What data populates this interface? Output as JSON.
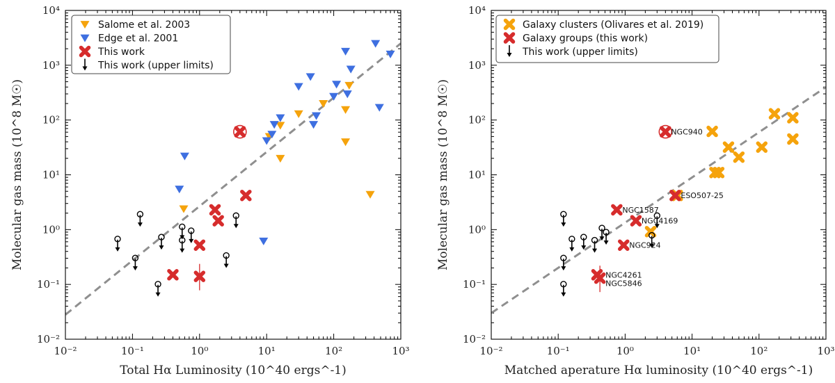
{
  "chart_data": [
    {
      "type": "scatter",
      "xscale": "log",
      "yscale": "log",
      "xlim": [
        0.01,
        1000
      ],
      "ylim": [
        0.01,
        10000
      ],
      "xlabel": "Total Hα Luminosity (10^40 ergs^-1)",
      "ylabel": "Molecular gas mass (10^8 M☉)",
      "legend_position": "top-left",
      "fit_line": {
        "x": [
          0.01,
          1000
        ],
        "y": [
          0.028,
          2500
        ],
        "style": "dashed",
        "color": "#8f8f8f"
      },
      "series": [
        {
          "name": "Salome et al. 2003",
          "marker": "triangle-down",
          "color": "#f5a30c",
          "points": [
            [
              0.58,
              2.4
            ],
            [
              11,
              50
            ],
            [
              16,
              80
            ],
            [
              16,
              20
            ],
            [
              30,
              130
            ],
            [
              70,
              200
            ],
            [
              150,
              155
            ],
            [
              170,
              430
            ],
            [
              150,
              40
            ],
            [
              350,
              4.4
            ]
          ]
        },
        {
          "name": "Edge et al. 2001",
          "marker": "triangle-down",
          "color": "#3e6fe0",
          "points": [
            [
              0.5,
              5.5
            ],
            [
              0.6,
              22
            ],
            [
              9,
              0.62
            ],
            [
              10,
              42
            ],
            [
              12,
              55
            ],
            [
              13,
              83
            ],
            [
              16,
              110
            ],
            [
              30,
              410
            ],
            [
              45,
              620
            ],
            [
              50,
              83
            ],
            [
              55,
              120
            ],
            [
              100,
              270
            ],
            [
              110,
              450
            ],
            [
              150,
              1800
            ],
            [
              180,
              850
            ],
            [
              160,
              300
            ],
            [
              420,
              2500
            ],
            [
              480,
              170
            ],
            [
              700,
              1600
            ]
          ]
        },
        {
          "name": "This work",
          "marker": "x-cross",
          "color": "#d62c2c",
          "points": [
            [
              0.4,
              0.15
            ],
            [
              1.0,
              0.52
            ],
            [
              1.0,
              0.14
            ],
            [
              1.7,
              2.3
            ],
            [
              1.9,
              1.45
            ],
            [
              4.0,
              61
            ],
            [
              4.9,
              4.2
            ]
          ]
        },
        {
          "name": "This work (upper limits)",
          "marker": "down-arrow",
          "color": "#000000",
          "points": [
            [
              0.06,
              0.6
            ],
            [
              0.11,
              0.27
            ],
            [
              0.13,
              1.7
            ],
            [
              0.24,
              0.09
            ],
            [
              0.27,
              0.65
            ],
            [
              0.55,
              0.57
            ],
            [
              0.55,
              1.0
            ],
            [
              0.75,
              0.85
            ],
            [
              2.5,
              0.3
            ],
            [
              3.5,
              1.6
            ]
          ]
        }
      ],
      "legend": [
        "Salome et al. 2003",
        "Edge et al. 2001",
        "This work",
        "This work (upper limits)"
      ]
    },
    {
      "type": "scatter",
      "xscale": "log",
      "yscale": "log",
      "xlim": [
        0.01,
        1000
      ],
      "ylim": [
        0.01,
        10000
      ],
      "xlabel": "Matched aperature Hα luminosity (10^40 ergs^-1)",
      "ylabel": "Molecular gas mass (10^8 M☉)",
      "legend_position": "top-left",
      "fit_line": {
        "x": [
          0.01,
          1000
        ],
        "y": [
          0.03,
          400
        ],
        "style": "dashed",
        "color": "#8f8f8f"
      },
      "series": [
        {
          "name": "Galaxy clusters (Olivares et al. 2019)",
          "marker": "x-cross",
          "color": "#f5a30c",
          "points": [
            [
              2.4,
              0.92
            ],
            [
              6,
              4.2
            ],
            [
              20,
              62
            ],
            [
              22,
              11
            ],
            [
              25,
              11
            ],
            [
              35,
              32
            ],
            [
              50,
              21
            ],
            [
              110,
              32
            ],
            [
              170,
              130
            ],
            [
              320,
              110
            ],
            [
              320,
              45
            ]
          ]
        },
        {
          "name": "Galaxy groups (this work)",
          "marker": "x-cross",
          "color": "#d62c2c",
          "points": [
            [
              0.38,
              0.15
            ],
            [
              0.42,
              0.13
            ],
            [
              0.75,
              2.3
            ],
            [
              0.95,
              0.52
            ],
            [
              1.45,
              1.45
            ],
            [
              4.0,
              61
            ],
            [
              5.6,
              4.2
            ]
          ]
        },
        {
          "name": "This work (upper limits)",
          "marker": "down-arrow",
          "color": "#000000",
          "points": [
            [
              0.12,
              1.7
            ],
            [
              0.12,
              0.27
            ],
            [
              0.12,
              0.09
            ],
            [
              0.16,
              0.6
            ],
            [
              0.24,
              0.65
            ],
            [
              0.35,
              0.57
            ],
            [
              0.45,
              0.95
            ],
            [
              0.52,
              0.8
            ],
            [
              3.0,
              1.6
            ],
            [
              2.5,
              0.7
            ]
          ]
        }
      ],
      "annotations": [
        {
          "text": "NGC940",
          "x": 4.0,
          "y": 61
        },
        {
          "text": "ESO507-25",
          "x": 5.6,
          "y": 4.2
        },
        {
          "text": "NGC1587",
          "x": 0.75,
          "y": 2.3
        },
        {
          "text": "NGC4169",
          "x": 1.45,
          "y": 1.45
        },
        {
          "text": "NGC924",
          "x": 0.95,
          "y": 0.52
        },
        {
          "text": "NGC4261",
          "x": 0.42,
          "y": 0.15
        },
        {
          "text": "NGC5846",
          "x": 0.42,
          "y": 0.105
        }
      ],
      "legend": [
        "Galaxy clusters (Olivares et al. 2019)",
        "Galaxy groups (this work)",
        "This work (upper limits)"
      ]
    }
  ],
  "tick_labels": {
    "x": [
      "10⁻²",
      "10⁻¹",
      "10⁰",
      "10¹",
      "10²",
      "10³"
    ],
    "y": [
      "10⁻²",
      "10⁻¹",
      "10⁰",
      "10¹",
      "10²",
      "10³",
      "10⁴"
    ]
  }
}
